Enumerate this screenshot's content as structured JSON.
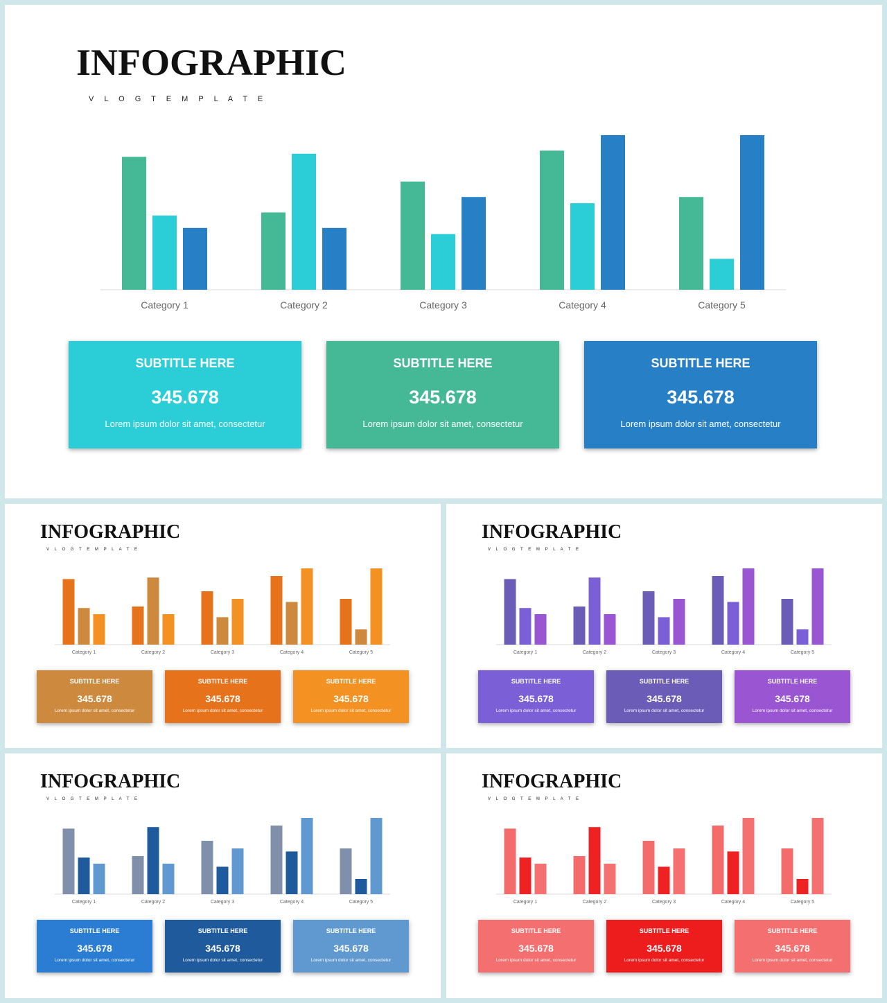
{
  "slides": [
    {
      "title": "INFOGRAPHIC",
      "subtitle": "V L O G     T E M P L A T E",
      "palette": [
        "#45b995",
        "#2bcdd7",
        "#2780c6"
      ],
      "cards": [
        {
          "subtitle": "SUBTITLE HERE",
          "value": "345.678",
          "desc": "Lorem ipsum dolor sit amet, consectetur",
          "color": "#2bcdd7"
        },
        {
          "subtitle": "SUBTITLE HERE",
          "value": "345.678",
          "desc": "Lorem ipsum dolor sit amet, consectetur",
          "color": "#45b995"
        },
        {
          "subtitle": "SUBTITLE HERE",
          "value": "345.678",
          "desc": "Lorem ipsum dolor sit amet, consectetur",
          "color": "#2780c6"
        }
      ]
    },
    {
      "title": "INFOGRAPHIC",
      "subtitle": "V L O G     T E M P L A T E",
      "palette": [
        "#e6731c",
        "#cd8a3e",
        "#f39122"
      ],
      "cards": [
        {
          "subtitle": "SUBTITLE HERE",
          "value": "345.678",
          "desc": "Lorem ipsum dolor sit amet, consectetur",
          "color": "#cd8a3e"
        },
        {
          "subtitle": "SUBTITLE HERE",
          "value": "345.678",
          "desc": "Lorem ipsum dolor sit amet, consectetur",
          "color": "#e6731c"
        },
        {
          "subtitle": "SUBTITLE HERE",
          "value": "345.678",
          "desc": "Lorem ipsum dolor sit amet, consectetur",
          "color": "#f39122"
        }
      ]
    },
    {
      "title": "INFOGRAPHIC",
      "subtitle": "V L O G     T E M P L A T E",
      "palette": [
        "#6b5cb8",
        "#7a5fd6",
        "#9a56d2"
      ],
      "cards": [
        {
          "subtitle": "SUBTITLE HERE",
          "value": "345.678",
          "desc": "Lorem ipsum dolor sit amet, consectetur",
          "color": "#7a5fd6"
        },
        {
          "subtitle": "SUBTITLE HERE",
          "value": "345.678",
          "desc": "Lorem ipsum dolor sit amet, consectetur",
          "color": "#6b5cb8"
        },
        {
          "subtitle": "SUBTITLE HERE",
          "value": "345.678",
          "desc": "Lorem ipsum dolor sit amet, consectetur",
          "color": "#9a56d2"
        }
      ]
    },
    {
      "title": "INFOGRAPHIC",
      "subtitle": "V L O G     T E M P L A T E",
      "palette": [
        "#8090aa",
        "#1f5b9c",
        "#6099d0"
      ],
      "cards": [
        {
          "subtitle": "SUBTITLE HERE",
          "value": "345.678",
          "desc": "Lorem ipsum dolor sit amet, consectetur",
          "color": "#2a7dd2"
        },
        {
          "subtitle": "SUBTITLE HERE",
          "value": "345.678",
          "desc": "Lorem ipsum dolor sit amet, consectetur",
          "color": "#1f5b9c"
        },
        {
          "subtitle": "SUBTITLE HERE",
          "value": "345.678",
          "desc": "Lorem ipsum dolor sit amet, consectetur",
          "color": "#6099d0"
        }
      ]
    },
    {
      "title": "INFOGRAPHIC",
      "subtitle": "V L O G     T E M P L A T E",
      "palette": [
        "#f46b6b",
        "#ee2222",
        "#f57070"
      ],
      "cards": [
        {
          "subtitle": "SUBTITLE HERE",
          "value": "345.678",
          "desc": "Lorem ipsum dolor sit amet, consectetur",
          "color": "#f46f6f"
        },
        {
          "subtitle": "SUBTITLE HERE",
          "value": "345.678",
          "desc": "Lorem ipsum dolor sit amet, consectetur",
          "color": "#ee1d1d"
        },
        {
          "subtitle": "SUBTITLE HERE",
          "value": "345.678",
          "desc": "Lorem ipsum dolor sit amet, consectetur",
          "color": "#f46f6f"
        }
      ]
    }
  ],
  "chart_data": {
    "type": "bar",
    "categories": [
      "Category 1",
      "Category 2",
      "Category 3",
      "Category 4",
      "Category 5"
    ],
    "series": [
      {
        "values": [
          4.3,
          2.5,
          3.5,
          4.5,
          3.0
        ]
      },
      {
        "values": [
          2.4,
          4.4,
          1.8,
          2.8,
          1.0
        ]
      },
      {
        "values": [
          2.0,
          2.0,
          3.0,
          5.0,
          5.0
        ]
      }
    ],
    "ylim": [
      0,
      5
    ],
    "grid": false,
    "legend": "none"
  }
}
